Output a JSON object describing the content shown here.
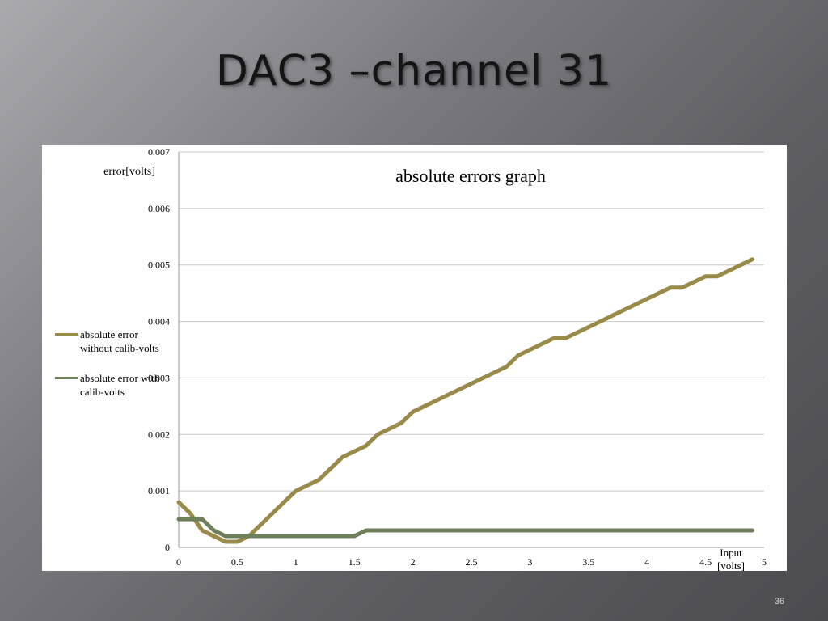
{
  "slide": {
    "title": "DAC3 –channel 31",
    "page_number": "36"
  },
  "colors": {
    "background": "#6b6b70",
    "series_without_calib": "#9a8a4a",
    "series_with_calib": "#6e7f5c",
    "gridline": "#c8c8c8"
  },
  "chart_data": {
    "type": "line",
    "title": "absolute errors graph",
    "xlabel": "Input [volts]",
    "ylabel": "error[volts]",
    "xlim": [
      0,
      5
    ],
    "ylim": [
      0,
      0.007
    ],
    "x_ticks": [
      "0",
      "0.5",
      "1",
      "1.5",
      "2",
      "2.5",
      "3",
      "3.5",
      "4",
      "4.5",
      "5"
    ],
    "y_ticks": [
      "0",
      "0.001",
      "0.002",
      "0.003",
      "0.004",
      "0.005",
      "0.006",
      "0.007"
    ],
    "grid": "horizontal",
    "legend_position": "left",
    "series": [
      {
        "name": "absolute error without calib-volts",
        "x": [
          0,
          0.1,
          0.2,
          0.3,
          0.4,
          0.5,
          0.6,
          0.7,
          0.8,
          0.9,
          1.0,
          1.1,
          1.2,
          1.3,
          1.4,
          1.5,
          1.6,
          1.7,
          1.8,
          1.9,
          2.0,
          2.1,
          2.2,
          2.3,
          2.4,
          2.5,
          2.6,
          2.7,
          2.8,
          2.9,
          3.0,
          3.1,
          3.2,
          3.3,
          3.4,
          3.5,
          3.6,
          3.7,
          3.8,
          3.9,
          4.0,
          4.1,
          4.2,
          4.3,
          4.4,
          4.5,
          4.6,
          4.7,
          4.8,
          4.9
        ],
        "y": [
          0.0008,
          0.0006,
          0.0003,
          0.0002,
          0.0001,
          0.0001,
          0.0002,
          0.0004,
          0.0006,
          0.0008,
          0.001,
          0.0011,
          0.0012,
          0.0014,
          0.0016,
          0.0017,
          0.0018,
          0.002,
          0.0021,
          0.0022,
          0.0024,
          0.0025,
          0.0026,
          0.0027,
          0.0028,
          0.0029,
          0.003,
          0.0031,
          0.0032,
          0.0034,
          0.0035,
          0.0036,
          0.0037,
          0.0037,
          0.0038,
          0.0039,
          0.004,
          0.0041,
          0.0042,
          0.0043,
          0.0044,
          0.0045,
          0.0046,
          0.0046,
          0.0047,
          0.0048,
          0.0048,
          0.0049,
          0.005,
          0.0051
        ]
      },
      {
        "name": "absolute error with calib-volts",
        "x": [
          0,
          0.1,
          0.2,
          0.3,
          0.4,
          0.5,
          0.6,
          0.7,
          0.8,
          0.9,
          1.0,
          1.1,
          1.2,
          1.3,
          1.4,
          1.5,
          1.6,
          1.7,
          1.8,
          1.9,
          2.0,
          2.1,
          2.2,
          2.3,
          2.4,
          2.5,
          2.6,
          2.7,
          2.8,
          2.9,
          3.0,
          3.1,
          3.2,
          3.3,
          3.4,
          3.5,
          3.6,
          3.7,
          3.8,
          3.9,
          4.0,
          4.1,
          4.2,
          4.3,
          4.4,
          4.5,
          4.6,
          4.7,
          4.8,
          4.9
        ],
        "y": [
          0.0005,
          0.0005,
          0.0005,
          0.0003,
          0.0002,
          0.0002,
          0.0002,
          0.0002,
          0.0002,
          0.0002,
          0.0002,
          0.0002,
          0.0002,
          0.0002,
          0.0002,
          0.0002,
          0.0003,
          0.0003,
          0.0003,
          0.0003,
          0.0003,
          0.0003,
          0.0003,
          0.0003,
          0.0003,
          0.0003,
          0.0003,
          0.0003,
          0.0003,
          0.0003,
          0.0003,
          0.0003,
          0.0003,
          0.0003,
          0.0003,
          0.0003,
          0.0003,
          0.0003,
          0.0003,
          0.0003,
          0.0003,
          0.0003,
          0.0003,
          0.0003,
          0.0003,
          0.0003,
          0.0003,
          0.0003,
          0.0003,
          0.0003
        ]
      }
    ]
  }
}
